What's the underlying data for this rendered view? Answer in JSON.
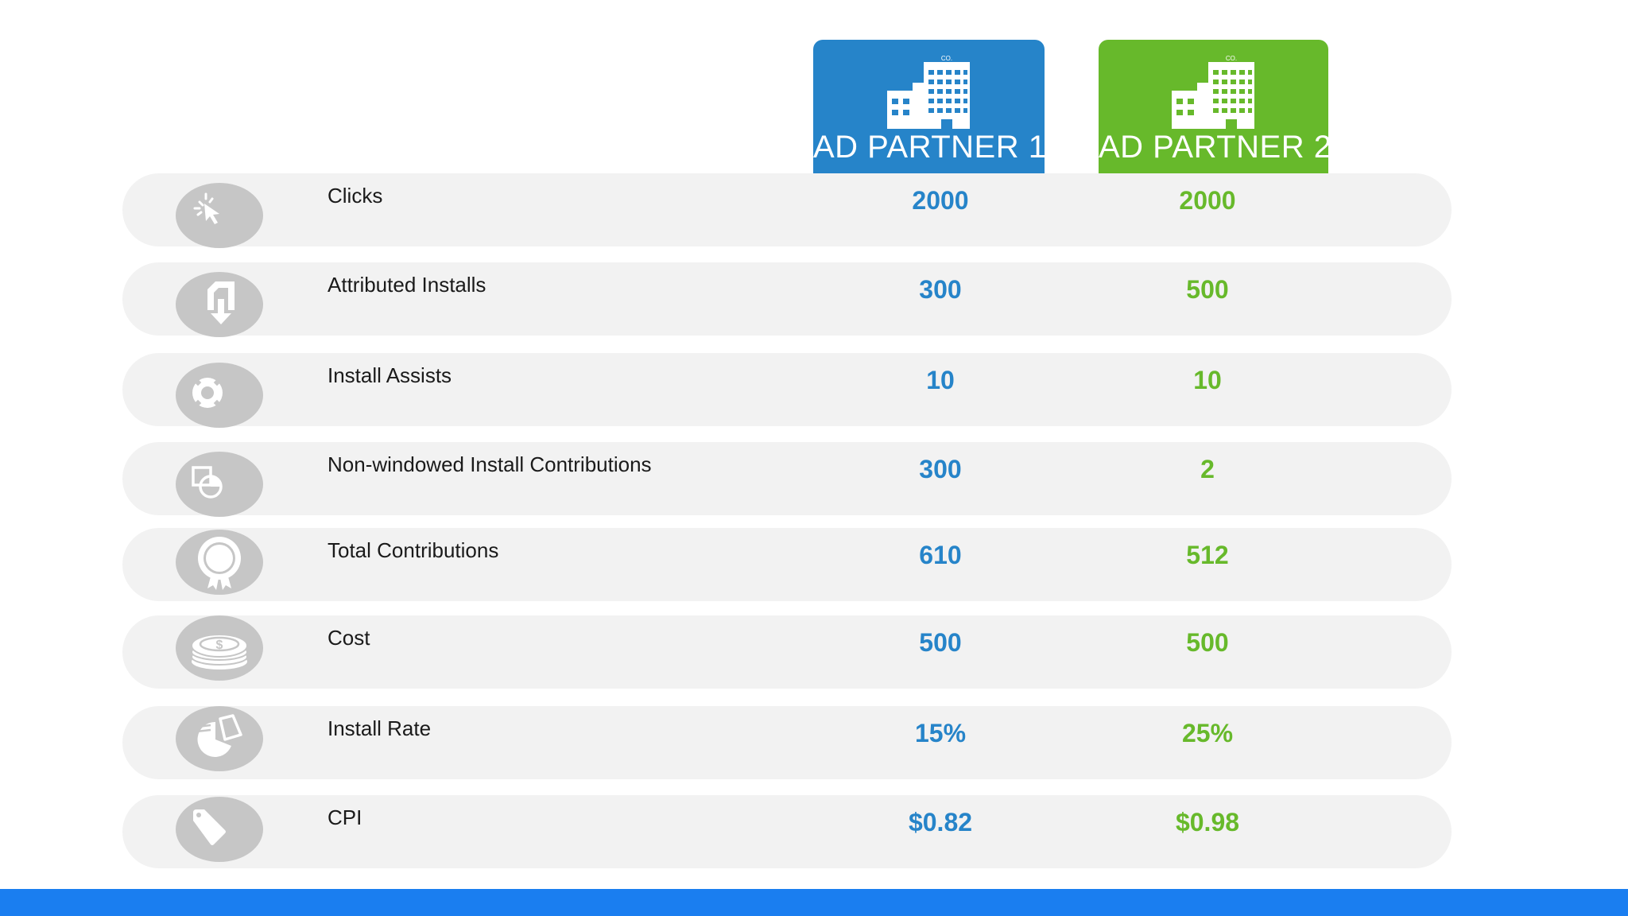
{
  "colors": {
    "partner_1": "#2684c9",
    "partner_2": "#67b92b",
    "row_background": "#f2f2f2",
    "icon_circle": "#c6c6c6",
    "bottom_bar": "#1a7ef0"
  },
  "partners": [
    {
      "name": "AD PARTNER 1",
      "badge": "CO.",
      "icon": "building-icon"
    },
    {
      "name": "AD PARTNER 2",
      "badge": "CO.",
      "icon": "building-icon"
    }
  ],
  "rows": [
    {
      "label": "Clicks",
      "icon": "cursor-click-icon",
      "partner_1": "2000",
      "partner_2": "2000"
    },
    {
      "label": "Attributed Installs",
      "icon": "install-download-icon",
      "partner_1": "300",
      "partner_2": "500"
    },
    {
      "label": "Install Assists",
      "icon": "lifebuoy-icon",
      "partner_1": "10",
      "partner_2": "10"
    },
    {
      "label": "Non-windowed Install Contributions",
      "icon": "window-contribution-icon",
      "partner_1": "300",
      "partner_2": "2"
    },
    {
      "label": "Total Contributions",
      "icon": "award-badge-icon",
      "partner_1": "610",
      "partner_2": "512"
    },
    {
      "label": "Cost",
      "icon": "coin-stack-icon",
      "partner_1": "500",
      "partner_2": "500"
    },
    {
      "label": "Install Rate",
      "icon": "pie-chart-icon",
      "partner_1": "15%",
      "partner_2": "25%"
    },
    {
      "label": "CPI",
      "icon": "price-tag-icon",
      "partner_1": "$0.82",
      "partner_2": "$0.98"
    }
  ]
}
